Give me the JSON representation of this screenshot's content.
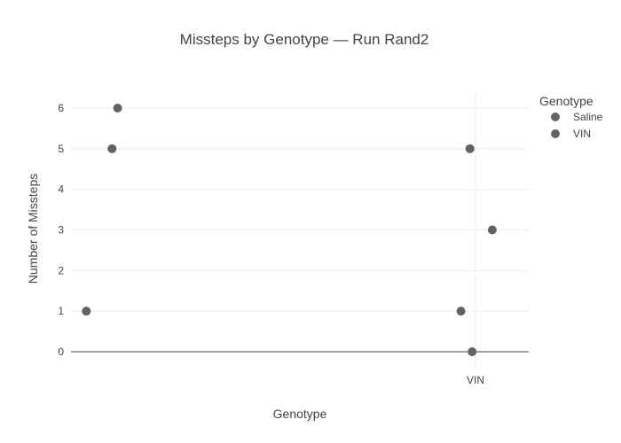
{
  "chart_data": {
    "type": "scatter",
    "title": "Missteps by Genotype — Run Rand2",
    "xlabel": "Genotype",
    "ylabel": "Number of Missteps",
    "x_categories": [
      "Saline",
      "VIN"
    ],
    "x_tick_labels_shown": [
      "VIN"
    ],
    "ylim": [
      -0.5,
      6.5
    ],
    "yticks": [
      0,
      1,
      2,
      3,
      4,
      5,
      6
    ],
    "grid": true,
    "legend": {
      "title": "Genotype",
      "placement": "top-right",
      "entries": [
        "Saline",
        "VIN"
      ]
    },
    "marker_color": "#636363",
    "series": [
      {
        "name": "Saline",
        "points": [
          {
            "x": "Saline",
            "jitter": -0.18,
            "y": 1
          },
          {
            "x": "Saline",
            "jitter": 0.05,
            "y": 5
          },
          {
            "x": "Saline",
            "jitter": 0.1,
            "y": 6
          }
        ]
      },
      {
        "name": "VIN",
        "points": [
          {
            "x": "VIN",
            "jitter": -0.03,
            "y": 0
          },
          {
            "x": "VIN",
            "jitter": -0.13,
            "y": 1
          },
          {
            "x": "VIN",
            "jitter": 0.15,
            "y": 3
          },
          {
            "x": "VIN",
            "jitter": -0.05,
            "y": 5
          }
        ]
      }
    ]
  }
}
